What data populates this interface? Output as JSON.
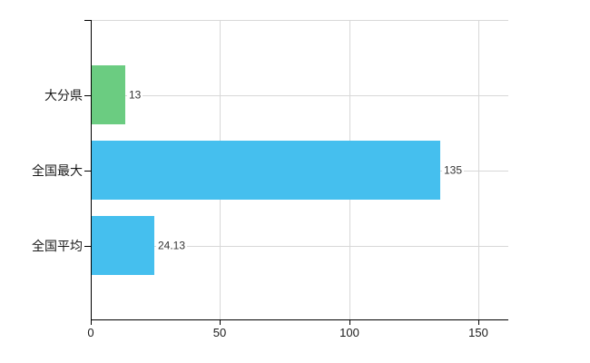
{
  "chart_data": {
    "type": "bar",
    "orientation": "horizontal",
    "categories": [
      "大分県",
      "全国最大",
      "全国平均"
    ],
    "values": [
      13,
      135,
      24.13
    ],
    "value_labels": [
      "13",
      "135",
      "24.13"
    ],
    "bar_colors": [
      "#6bcc81",
      "#45bfee",
      "#45bfee"
    ],
    "x_ticks": [
      0,
      50,
      100,
      150
    ],
    "x_tick_labels": [
      "0",
      "50",
      "100",
      "150"
    ],
    "xlim": [
      0,
      161.6
    ],
    "grid": true,
    "legend": "none",
    "colors": {
      "gridline": "#d8d8d8",
      "axis": "#000000",
      "tick_text": "#1a1a1a",
      "value_text": "#333333",
      "background": "#ffffff"
    }
  }
}
